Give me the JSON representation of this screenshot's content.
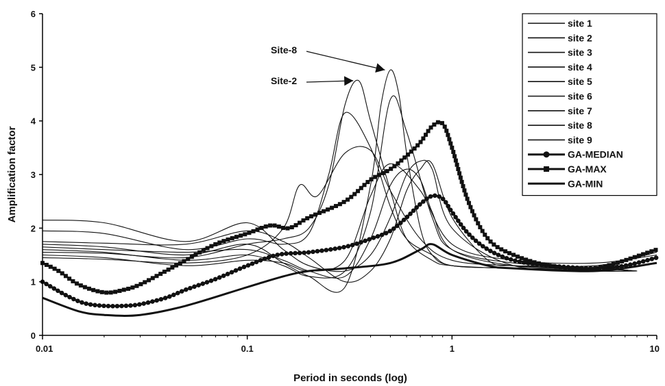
{
  "chart_data": {
    "type": "line",
    "title": "",
    "xlabel": "Period in seconds (log)",
    "ylabel": "Amplification factor",
    "x_scale": "log",
    "xlim": [
      0.01,
      10
    ],
    "ylim": [
      0,
      6
    ],
    "x_ticks": [
      0.01,
      0.1,
      1,
      10
    ],
    "x_tick_labels": [
      "0.01",
      "0.1",
      "1",
      "10"
    ],
    "y_ticks": [
      0,
      1,
      2,
      3,
      4,
      5,
      6
    ],
    "y_tick_labels": [
      "0",
      "1",
      "2",
      "3",
      "4",
      "5",
      "6"
    ],
    "grid": false,
    "legend_position": "top-right",
    "series": [
      {
        "name": "site 1",
        "x": [
          0.01,
          0.02,
          0.05,
          0.1,
          0.15,
          0.2,
          0.3,
          0.4,
          0.5,
          0.6,
          0.7,
          0.8,
          1,
          1.5,
          2,
          3,
          5,
          8
        ],
        "y": [
          1.75,
          1.72,
          1.7,
          1.95,
          1.75,
          1.45,
          1.0,
          1.2,
          1.8,
          2.7,
          3.1,
          3.2,
          2.2,
          1.4,
          1.3,
          1.3,
          1.25,
          1.2
        ]
      },
      {
        "name": "site 2",
        "x": [
          0.01,
          0.02,
          0.05,
          0.1,
          0.15,
          0.2,
          0.25,
          0.3,
          0.35,
          0.4,
          0.5,
          0.6,
          0.8,
          1,
          2,
          5,
          8
        ],
        "y": [
          1.55,
          1.53,
          1.45,
          1.7,
          1.8,
          2.0,
          2.8,
          4.3,
          4.75,
          4.0,
          2.7,
          1.8,
          1.4,
          1.3,
          1.25,
          1.25,
          1.2
        ]
      },
      {
        "name": "site 3",
        "x": [
          0.01,
          0.02,
          0.05,
          0.1,
          0.15,
          0.2,
          0.3,
          0.4,
          0.5,
          0.6,
          0.7,
          0.8,
          1,
          2,
          5,
          8
        ],
        "y": [
          2.15,
          2.1,
          1.75,
          2.1,
          1.6,
          1.3,
          1.2,
          1.5,
          2.2,
          3.0,
          3.25,
          3.1,
          2.0,
          1.3,
          1.25,
          1.2
        ]
      },
      {
        "name": "site 4",
        "x": [
          0.01,
          0.02,
          0.05,
          0.1,
          0.15,
          0.18,
          0.22,
          0.3,
          0.4,
          0.5,
          0.7,
          1,
          2,
          5,
          8
        ],
        "y": [
          1.45,
          1.42,
          1.35,
          1.5,
          2.0,
          2.8,
          2.6,
          3.4,
          3.45,
          2.7,
          1.8,
          1.4,
          1.3,
          1.25,
          1.2
        ]
      },
      {
        "name": "site 5",
        "x": [
          0.01,
          0.02,
          0.05,
          0.1,
          0.15,
          0.2,
          0.25,
          0.3,
          0.4,
          0.5,
          0.6,
          0.8,
          1,
          2,
          5,
          8
        ],
        "y": [
          1.95,
          1.9,
          1.6,
          1.8,
          1.7,
          1.9,
          3.0,
          4.15,
          3.5,
          2.4,
          1.8,
          1.5,
          1.3,
          1.25,
          1.2,
          1.2
        ]
      },
      {
        "name": "site 6",
        "x": [
          0.01,
          0.02,
          0.05,
          0.1,
          0.15,
          0.2,
          0.3,
          0.4,
          0.5,
          0.6,
          0.7,
          0.8,
          1,
          2,
          5,
          8
        ],
        "y": [
          1.65,
          1.6,
          1.55,
          1.6,
          1.4,
          1.2,
          1.1,
          1.8,
          2.8,
          3.1,
          2.9,
          2.3,
          1.6,
          1.3,
          1.25,
          1.2
        ]
      },
      {
        "name": "site 7",
        "x": [
          0.01,
          0.02,
          0.05,
          0.1,
          0.15,
          0.2,
          0.3,
          0.4,
          0.5,
          0.7,
          1,
          2,
          5,
          10
        ],
        "y": [
          1.5,
          1.45,
          1.3,
          1.4,
          1.35,
          1.2,
          1.4,
          2.6,
          3.2,
          2.7,
          1.7,
          1.4,
          1.35,
          1.5
        ]
      },
      {
        "name": "site 8",
        "x": [
          0.01,
          0.02,
          0.05,
          0.1,
          0.15,
          0.2,
          0.3,
          0.4,
          0.45,
          0.5,
          0.55,
          0.6,
          0.7,
          0.8,
          1,
          2,
          5,
          8
        ],
        "y": [
          1.7,
          1.65,
          1.5,
          1.7,
          1.35,
          1.1,
          0.9,
          2.8,
          4.3,
          4.95,
          4.5,
          3.4,
          2.0,
          1.5,
          1.3,
          1.25,
          1.2,
          1.2
        ]
      },
      {
        "name": "site 9",
        "x": [
          0.01,
          0.02,
          0.05,
          0.1,
          0.15,
          0.2,
          0.3,
          0.4,
          0.5,
          0.6,
          0.8,
          1,
          2,
          5,
          10
        ],
        "y": [
          1.6,
          1.55,
          1.4,
          1.5,
          1.3,
          1.1,
          1.2,
          2.3,
          4.4,
          3.8,
          2.2,
          1.6,
          1.35,
          1.3,
          1.55
        ]
      },
      {
        "name": "GA-MEDIAN",
        "x": [
          0.01,
          0.013,
          0.016,
          0.02,
          0.025,
          0.03,
          0.04,
          0.05,
          0.07,
          0.1,
          0.14,
          0.2,
          0.3,
          0.4,
          0.5,
          0.6,
          0.7,
          0.8,
          0.9,
          1,
          1.2,
          1.5,
          2,
          3,
          5,
          7,
          10
        ],
        "y": [
          1.0,
          0.75,
          0.6,
          0.55,
          0.55,
          0.58,
          0.7,
          0.85,
          1.05,
          1.3,
          1.5,
          1.55,
          1.65,
          1.8,
          1.95,
          2.2,
          2.45,
          2.6,
          2.55,
          2.3,
          1.9,
          1.6,
          1.4,
          1.3,
          1.25,
          1.3,
          1.45
        ]
      },
      {
        "name": "GA-MAX",
        "x": [
          0.01,
          0.012,
          0.015,
          0.02,
          0.025,
          0.03,
          0.04,
          0.05,
          0.07,
          0.1,
          0.13,
          0.16,
          0.2,
          0.3,
          0.4,
          0.5,
          0.6,
          0.7,
          0.8,
          0.9,
          1,
          1.2,
          1.5,
          2,
          3,
          5,
          10
        ],
        "y": [
          1.35,
          1.2,
          0.95,
          0.8,
          0.85,
          0.95,
          1.2,
          1.4,
          1.7,
          1.9,
          2.05,
          2.0,
          2.2,
          2.5,
          2.9,
          3.1,
          3.35,
          3.6,
          3.9,
          3.95,
          3.5,
          2.5,
          1.8,
          1.5,
          1.3,
          1.25,
          1.6
        ]
      },
      {
        "name": "GA-MIN",
        "x": [
          0.01,
          0.015,
          0.02,
          0.03,
          0.05,
          0.1,
          0.15,
          0.2,
          0.3,
          0.5,
          0.7,
          0.8,
          1,
          1.5,
          2,
          5,
          10
        ],
        "y": [
          0.7,
          0.45,
          0.38,
          0.38,
          0.55,
          0.9,
          1.1,
          1.2,
          1.25,
          1.35,
          1.6,
          1.7,
          1.5,
          1.3,
          1.25,
          1.2,
          1.35
        ]
      }
    ],
    "annotations": [
      {
        "text": "Site-8",
        "target_x": 0.5,
        "target_y": 4.95
      },
      {
        "text": "Site-2",
        "target_x": 0.35,
        "target_y": 4.75
      }
    ],
    "colors": {
      "line": "#111111",
      "axis": "#000000",
      "background": "#ffffff"
    }
  }
}
